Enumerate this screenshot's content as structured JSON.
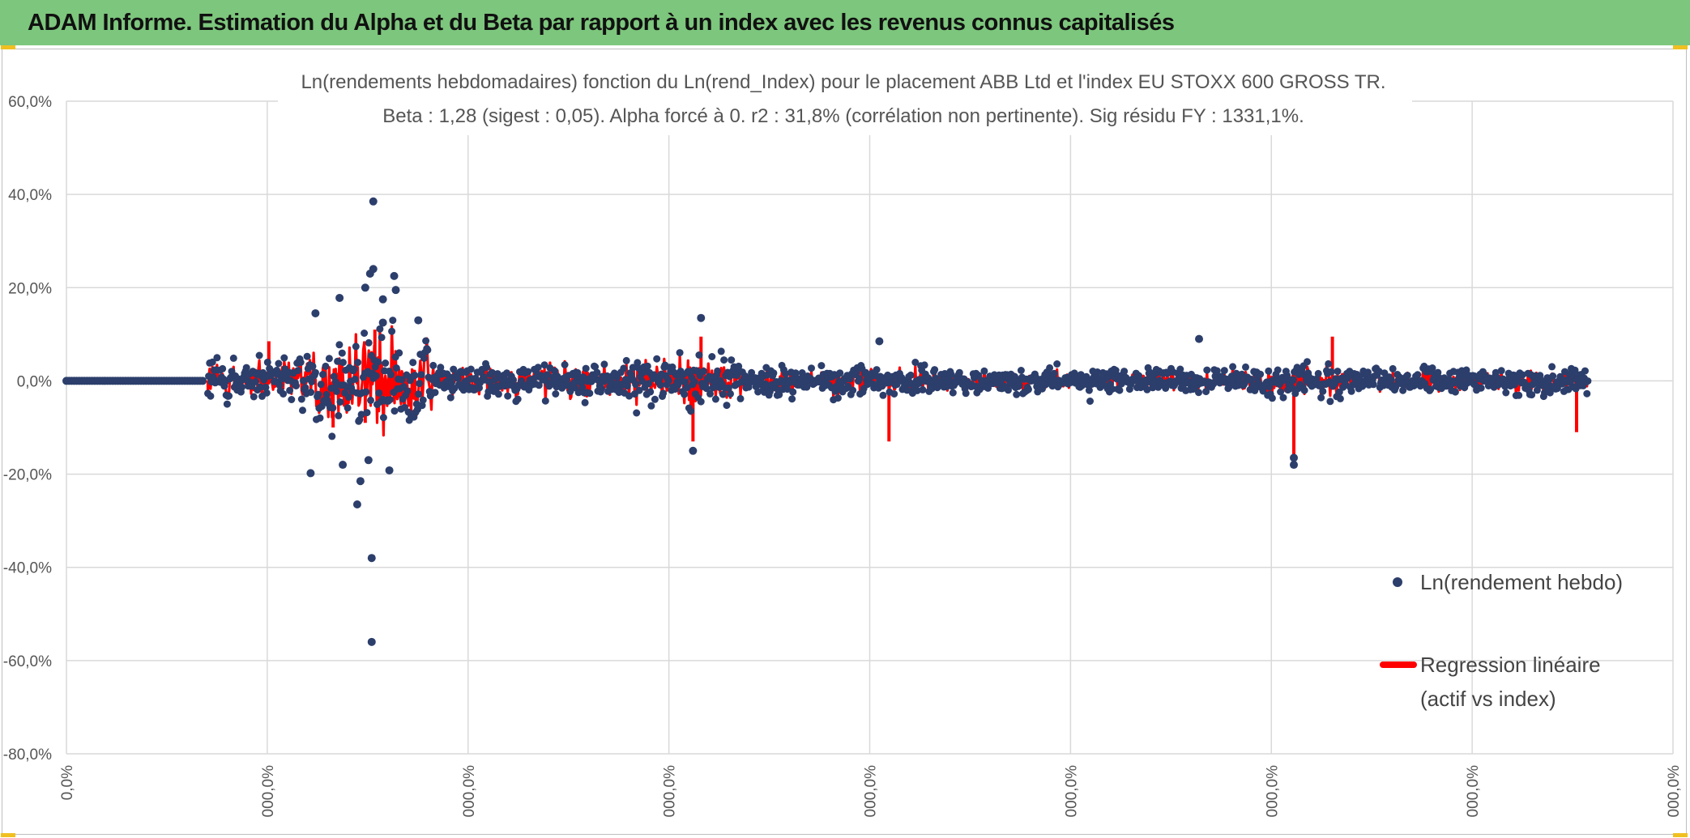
{
  "header": {
    "title": "ADAM Informe. Estimation du Alpha et du Beta par rapport à un index avec les revenus connus capitalisés"
  },
  "colors": {
    "header_bg": "#7dc67d",
    "points": "#2c3e6b",
    "regression": "#ff0000",
    "grid": "#d9d9d9"
  },
  "chart_data": {
    "type": "scatter",
    "title": "Ln(rendements hebdomadaires) fonction du Ln(rend_Index) pour le placement ABB Ltd et l'index EU STOXX 600 GROSS TR.",
    "subtitle": "Beta : 1,28 (sigest : 0,05). Alpha forcé à 0. r2 : 31,8% (corrélation non pertinente). Sig résidu FY : 1331,1%.",
    "xlabel": "",
    "ylabel": "",
    "y_ticks": [
      "60,0%",
      "40,0%",
      "20,0%",
      "0,0%",
      "-20,0%",
      "-40,0%",
      "-60,0%",
      "-80,0%"
    ],
    "y_tick_values": [
      60,
      40,
      20,
      0,
      -20,
      -40,
      -60,
      -80
    ],
    "ylim": [
      -80,
      60
    ],
    "x_ticks": [
      "0,0%",
      "000,0%",
      "000,0%",
      "000,0%",
      "000,0%",
      "000,0%",
      "000,0%",
      "000,0%",
      "000,0%"
    ],
    "grid": true,
    "legend_position": "right",
    "series": [
      {
        "name": "Ln(rendement hebdo)",
        "kind": "points",
        "notable_points": [
          {
            "x": 0.191,
            "y": 38.5
          },
          {
            "x": 0.191,
            "y": 24.0
          },
          {
            "x": 0.189,
            "y": 23.0
          },
          {
            "x": 0.204,
            "y": 22.5
          },
          {
            "x": 0.186,
            "y": 20.0
          },
          {
            "x": 0.205,
            "y": 19.5
          },
          {
            "x": 0.197,
            "y": 17.5
          },
          {
            "x": 0.17,
            "y": 17.8
          },
          {
            "x": 0.155,
            "y": 14.5
          },
          {
            "x": 0.219,
            "y": 13.0
          },
          {
            "x": 0.197,
            "y": 12.5
          },
          {
            "x": 0.172,
            "y": -18.0
          },
          {
            "x": 0.152,
            "y": -19.8
          },
          {
            "x": 0.201,
            "y": -19.2
          },
          {
            "x": 0.183,
            "y": -21.5
          },
          {
            "x": 0.188,
            "y": -17.0
          },
          {
            "x": 0.181,
            "y": -26.5
          },
          {
            "x": 0.19,
            "y": -38.0
          },
          {
            "x": 0.19,
            "y": -56.0
          },
          {
            "x": 0.395,
            "y": 13.5
          },
          {
            "x": 0.39,
            "y": -15.0
          },
          {
            "x": 0.764,
            "y": -18.0
          },
          {
            "x": 0.764,
            "y": -16.5
          },
          {
            "x": 0.705,
            "y": 9.0
          },
          {
            "x": 0.506,
            "y": 8.5
          }
        ]
      },
      {
        "name": "Regression linéaire (actif vs index)",
        "name_lines": [
          "Regression linéaire",
          "(actif vs index)"
        ],
        "kind": "line",
        "notable_points": [
          {
            "x": 0.192,
            "y": 11.0
          },
          {
            "x": 0.186,
            "y": -9.0
          },
          {
            "x": 0.166,
            "y": -10.0
          },
          {
            "x": 0.395,
            "y": 9.5
          },
          {
            "x": 0.39,
            "y": -13.0
          },
          {
            "x": 0.512,
            "y": -13.0
          },
          {
            "x": 0.764,
            "y": -18.5
          },
          {
            "x": 0.788,
            "y": 9.5
          },
          {
            "x": 0.94,
            "y": -11.0
          },
          {
            "x": 0.126,
            "y": 8.5
          }
        ]
      }
    ]
  }
}
